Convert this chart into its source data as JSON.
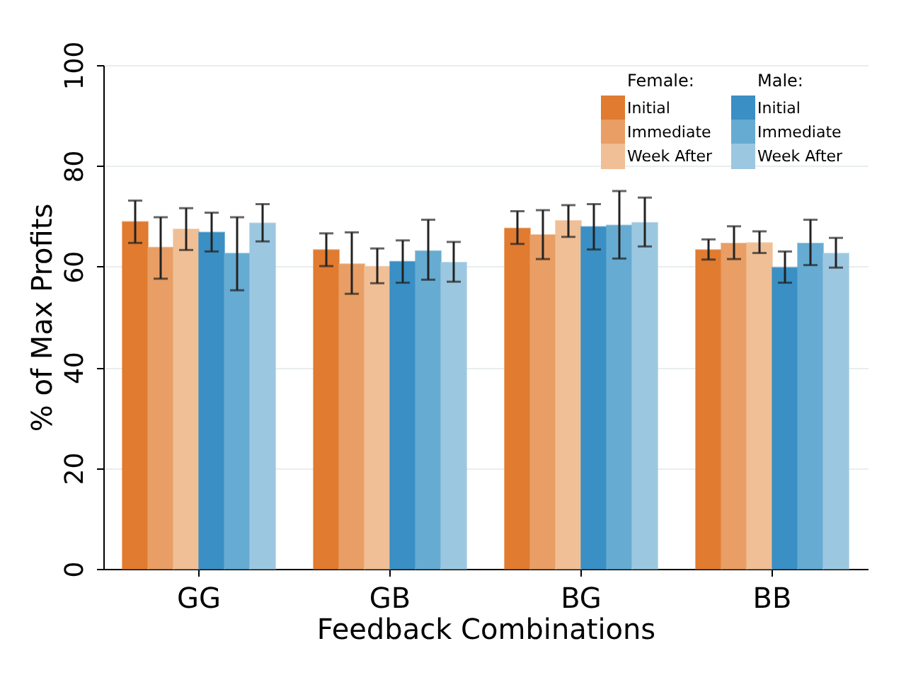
{
  "chart_data": {
    "type": "bar",
    "xlabel": "Feedback Combinations",
    "ylabel": "% of Max Profits",
    "categories": [
      "GG",
      "GB",
      "BG",
      "BB"
    ],
    "series": [
      {
        "name": "Initial",
        "color": "#e07b30",
        "values": [
          68.9,
          63.3,
          67.6,
          63.3
        ],
        "errors": [
          [
            64.7,
            73.1
          ],
          [
            60.1,
            66.6
          ],
          [
            64.5,
            71.0
          ],
          [
            61.4,
            65.4
          ]
        ]
      },
      {
        "name": "Immediate",
        "color": "#e89e64",
        "values": [
          63.8,
          60.5,
          66.3,
          64.6
        ],
        "errors": [
          [
            57.6,
            69.8
          ],
          [
            54.6,
            66.8
          ],
          [
            61.5,
            71.2
          ],
          [
            61.5,
            68.0
          ]
        ]
      },
      {
        "name": "Week After",
        "color": "#f0bf96",
        "values": [
          67.4,
          60.0,
          69.1,
          64.7
        ],
        "errors": [
          [
            63.3,
            71.6
          ],
          [
            56.7,
            63.6
          ],
          [
            65.9,
            72.2
          ],
          [
            62.7,
            67.0
          ]
        ]
      },
      {
        "name": "Initial",
        "color": "#3a8fc4",
        "values": [
          66.8,
          61.0,
          67.9,
          59.8
        ],
        "errors": [
          [
            63.0,
            70.7
          ],
          [
            56.8,
            65.2
          ],
          [
            63.4,
            72.4
          ],
          [
            56.8,
            63.0
          ]
        ]
      },
      {
        "name": "Immediate",
        "color": "#66abd2",
        "values": [
          62.6,
          63.1,
          68.2,
          64.6
        ],
        "errors": [
          [
            55.3,
            69.8
          ],
          [
            57.4,
            69.3
          ],
          [
            61.6,
            75.0
          ],
          [
            60.3,
            69.3
          ]
        ]
      },
      {
        "name": "Week After",
        "color": "#9cc7e0",
        "values": [
          68.6,
          60.8,
          68.7,
          62.6
        ],
        "errors": [
          [
            65.0,
            72.4
          ],
          [
            57.0,
            64.9
          ],
          [
            64.0,
            73.7
          ],
          [
            59.8,
            65.7
          ]
        ]
      }
    ],
    "annotations": [
      "Female:",
      "Male:"
    ],
    "ylim": [
      0,
      100
    ],
    "yticks": [
      0,
      20,
      40,
      60,
      80,
      100
    ],
    "grid": "y",
    "legend": "top right"
  }
}
